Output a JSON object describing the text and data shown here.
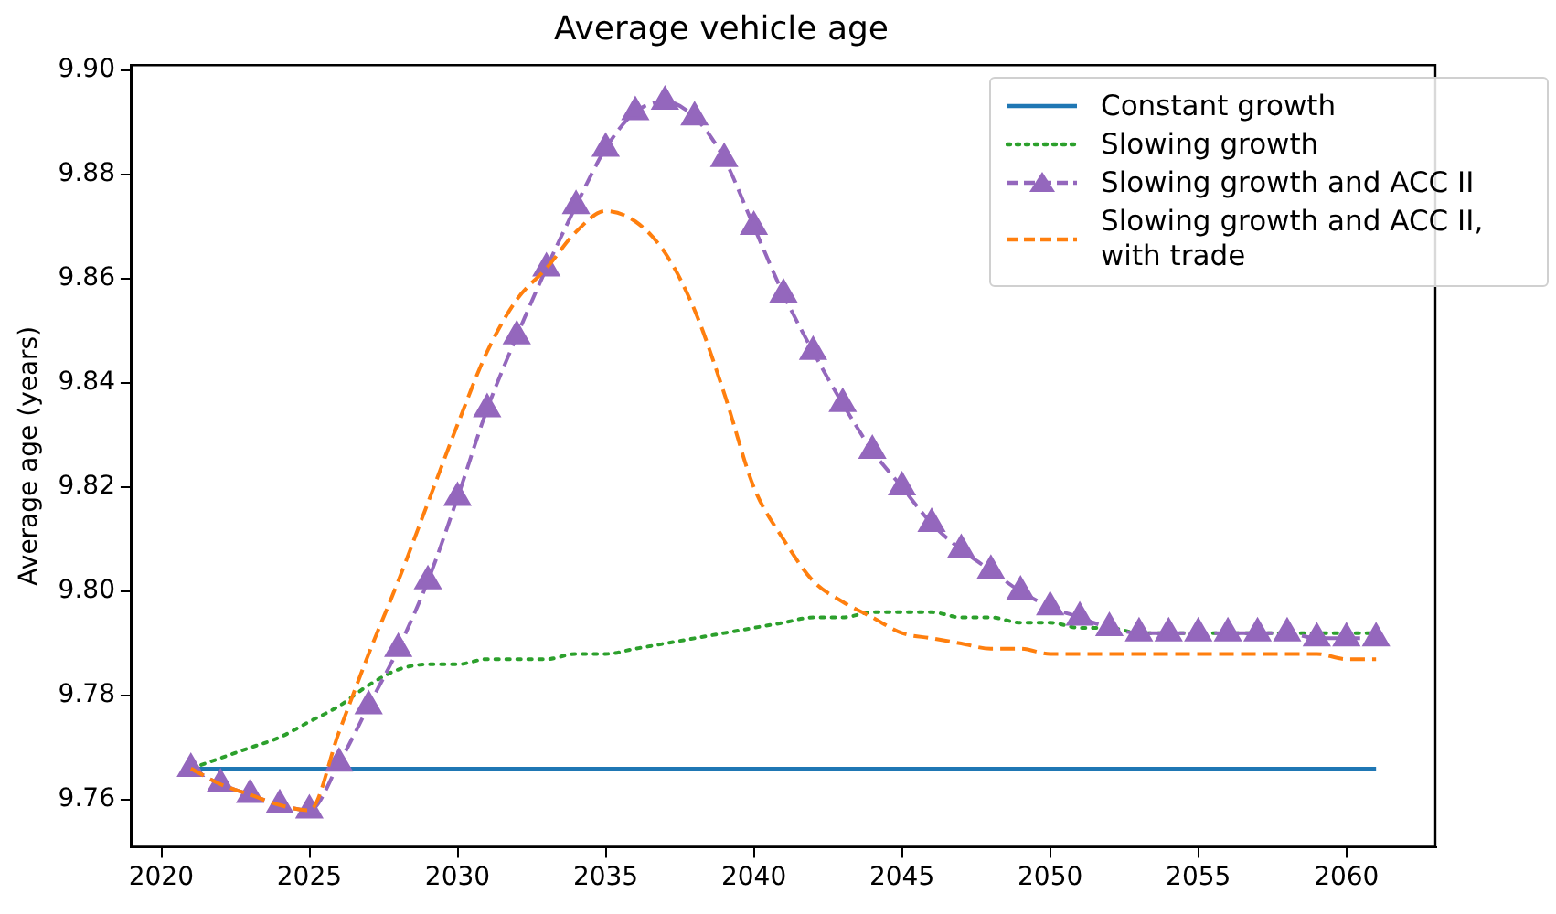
{
  "chart_data": {
    "type": "line",
    "title": "Average vehicle age",
    "ylabel": "Average age (years)",
    "x": [
      2021,
      2022,
      2023,
      2024,
      2025,
      2026,
      2027,
      2028,
      2029,
      2030,
      2031,
      2032,
      2033,
      2034,
      2035,
      2036,
      2037,
      2038,
      2039,
      2040,
      2041,
      2042,
      2043,
      2044,
      2045,
      2046,
      2047,
      2048,
      2049,
      2050,
      2051,
      2052,
      2053,
      2054,
      2055,
      2056,
      2057,
      2058,
      2059,
      2060,
      2061
    ],
    "xlim": [
      2019,
      2063
    ],
    "xticks": [
      2020,
      2025,
      2030,
      2035,
      2040,
      2045,
      2050,
      2055,
      2060
    ],
    "ylim": [
      9.751,
      9.901
    ],
    "yticks": [
      {
        "value": 9.76,
        "label": "9.76"
      },
      {
        "value": 9.78,
        "label": "9.78"
      },
      {
        "value": 9.8,
        "label": "9.80"
      },
      {
        "value": 9.82,
        "label": "9.82"
      },
      {
        "value": 9.84,
        "label": "9.84"
      },
      {
        "value": 9.86,
        "label": "9.86"
      },
      {
        "value": 9.88,
        "label": "9.88"
      },
      {
        "value": 9.9,
        "label": "9.90"
      }
    ],
    "grid": false,
    "legend": "top right",
    "series": [
      {
        "name": "Constant growth",
        "color": "#1f77b4",
        "line_style": "solid",
        "marker": "none",
        "values": [
          9.766,
          9.766,
          9.766,
          9.766,
          9.766,
          9.766,
          9.766,
          9.766,
          9.766,
          9.766,
          9.766,
          9.766,
          9.766,
          9.766,
          9.766,
          9.766,
          9.766,
          9.766,
          9.766,
          9.766,
          9.766,
          9.766,
          9.766,
          9.766,
          9.766,
          9.766,
          9.766,
          9.766,
          9.766,
          9.766,
          9.766,
          9.766,
          9.766,
          9.766,
          9.766,
          9.766,
          9.766,
          9.766,
          9.766,
          9.766,
          9.766
        ]
      },
      {
        "name": "Slowing growth",
        "color": "#2ca02c",
        "line_style": "dotted",
        "marker": "none",
        "values": [
          9.766,
          9.768,
          9.77,
          9.772,
          9.775,
          9.778,
          9.782,
          9.785,
          9.786,
          9.786,
          9.787,
          9.787,
          9.787,
          9.788,
          9.788,
          9.789,
          9.79,
          9.791,
          9.792,
          9.793,
          9.794,
          9.795,
          9.795,
          9.796,
          9.796,
          9.796,
          9.795,
          9.795,
          9.794,
          9.794,
          9.793,
          9.793,
          9.792,
          9.792,
          9.792,
          9.792,
          9.792,
          9.792,
          9.792,
          9.792,
          9.792
        ]
      },
      {
        "name": "Slowing growth and ACC II",
        "color": "#9467bd",
        "line_style": "dashed",
        "marker": "triangle",
        "values": [
          9.766,
          9.763,
          9.761,
          9.759,
          9.758,
          9.767,
          9.778,
          9.789,
          9.802,
          9.818,
          9.835,
          9.849,
          9.862,
          9.874,
          9.885,
          9.892,
          9.894,
          9.891,
          9.883,
          9.87,
          9.857,
          9.846,
          9.836,
          9.827,
          9.82,
          9.813,
          9.808,
          9.804,
          9.8,
          9.797,
          9.795,
          9.793,
          9.792,
          9.792,
          9.792,
          9.792,
          9.792,
          9.792,
          9.791,
          9.791,
          9.791
        ]
      },
      {
        "name": "Slowing growth and ACC II, with trade",
        "color": "#ff7f0e",
        "line_style": "dashed",
        "marker": "none",
        "values": [
          9.766,
          9.763,
          9.761,
          9.759,
          9.758,
          9.773,
          9.788,
          9.802,
          9.817,
          9.832,
          9.846,
          9.856,
          9.862,
          9.869,
          9.873,
          9.871,
          9.865,
          9.854,
          9.838,
          9.82,
          9.81,
          9.802,
          9.798,
          9.795,
          9.792,
          9.791,
          9.79,
          9.789,
          9.789,
          9.788,
          9.788,
          9.788,
          9.788,
          9.788,
          9.788,
          9.788,
          9.788,
          9.788,
          9.788,
          9.787,
          9.787
        ]
      }
    ]
  }
}
